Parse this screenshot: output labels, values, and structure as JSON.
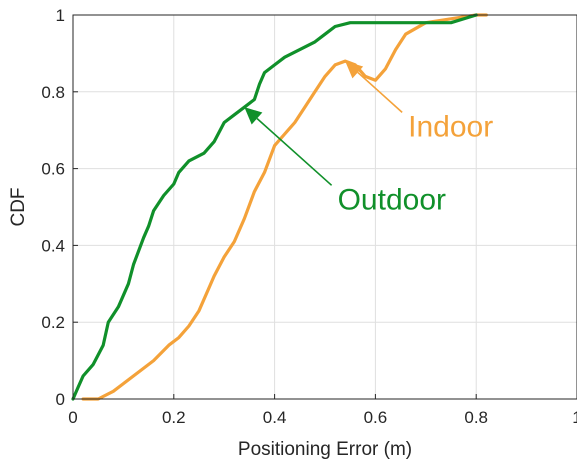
{
  "chart_data": {
    "type": "line",
    "title": "",
    "xlabel": "Positioning Error (m)",
    "ylabel": "CDF",
    "xlim": [
      0,
      1
    ],
    "ylim": [
      0,
      1
    ],
    "x_ticks": [
      "0",
      "0.2",
      "0.4",
      "0.6",
      "0.8",
      "1"
    ],
    "y_ticks": [
      "0",
      "0.2",
      "0.4",
      "0.6",
      "0.8",
      "1"
    ],
    "x_tick_values": [
      0,
      0.2,
      0.4,
      0.6,
      0.8,
      1
    ],
    "y_tick_values": [
      0,
      0.2,
      0.4,
      0.6,
      0.8,
      1
    ],
    "grid": true,
    "series": [
      {
        "name": "Outdoor",
        "color": "#10902a",
        "x": [
          0.0,
          0.01,
          0.02,
          0.04,
          0.06,
          0.07,
          0.09,
          0.11,
          0.12,
          0.14,
          0.15,
          0.16,
          0.18,
          0.2,
          0.21,
          0.23,
          0.26,
          0.28,
          0.3,
          0.32,
          0.34,
          0.36,
          0.37,
          0.38,
          0.4,
          0.42,
          0.45,
          0.48,
          0.5,
          0.52,
          0.55,
          0.6,
          0.65,
          0.7,
          0.75,
          0.8
        ],
        "y": [
          0.0,
          0.03,
          0.06,
          0.09,
          0.14,
          0.2,
          0.24,
          0.3,
          0.35,
          0.42,
          0.45,
          0.49,
          0.53,
          0.56,
          0.59,
          0.62,
          0.64,
          0.67,
          0.72,
          0.74,
          0.76,
          0.78,
          0.82,
          0.85,
          0.87,
          0.89,
          0.91,
          0.93,
          0.95,
          0.97,
          0.98,
          0.98,
          0.98,
          0.98,
          0.98,
          1.0
        ]
      },
      {
        "name": "Indoor",
        "color": "#f4a23a",
        "x": [
          0.02,
          0.05,
          0.08,
          0.1,
          0.13,
          0.16,
          0.19,
          0.21,
          0.23,
          0.25,
          0.27,
          0.28,
          0.3,
          0.32,
          0.34,
          0.36,
          0.38,
          0.4,
          0.42,
          0.44,
          0.46,
          0.48,
          0.5,
          0.52,
          0.54,
          0.56,
          0.58,
          0.6,
          0.62,
          0.64,
          0.66,
          0.7,
          0.75,
          0.8,
          0.82
        ],
        "y": [
          0.0,
          0.0,
          0.02,
          0.04,
          0.07,
          0.1,
          0.14,
          0.16,
          0.19,
          0.23,
          0.29,
          0.32,
          0.37,
          0.41,
          0.47,
          0.54,
          0.59,
          0.66,
          0.69,
          0.72,
          0.76,
          0.8,
          0.84,
          0.87,
          0.88,
          0.87,
          0.84,
          0.83,
          0.86,
          0.91,
          0.95,
          0.98,
          0.99,
          1.0,
          1.0
        ]
      }
    ],
    "annotations": [
      {
        "text": "Outdoor",
        "color": "#10902a",
        "point": [
          0.34,
          0.76
        ],
        "label_pos": [
          0.525,
          0.52
        ]
      },
      {
        "text": "Indoor",
        "color": "#f4a23a",
        "point": [
          0.54,
          0.88
        ],
        "label_pos": [
          0.665,
          0.71
        ]
      }
    ]
  }
}
